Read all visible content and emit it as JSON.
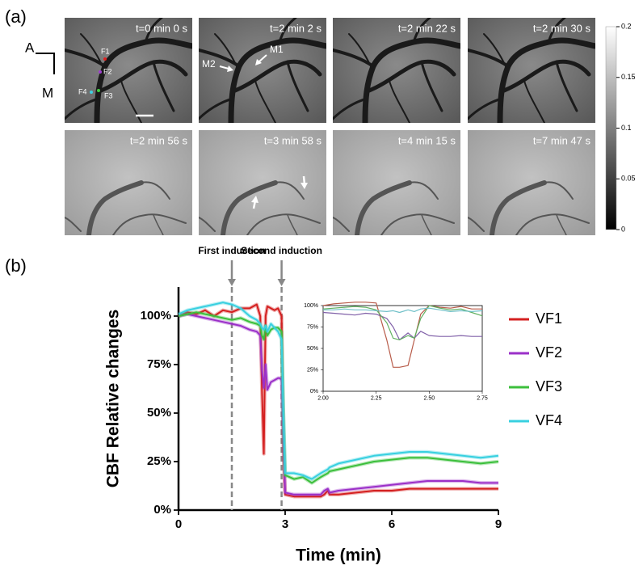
{
  "panel_labels": [
    "(a)",
    "(b)"
  ],
  "panel_a": {
    "frames": [
      "t=0 min 0 s",
      "t=2 min 2 s",
      "t=2 min 22 s",
      "t=2 min 30 s",
      "t=2 min 56 s",
      "t=3 min 58 s",
      "t=4 min 15 s",
      "t=7 min 47 s"
    ],
    "markers": [
      "F1",
      "F2",
      "F3",
      "F4"
    ],
    "arrows": [
      "M1",
      "M2"
    ],
    "orientation": [
      "A",
      "M"
    ],
    "colorbar": {
      "range": [
        0,
        0.2
      ],
      "ticks": [
        0,
        0.05,
        0.1,
        0.15,
        0.2
      ]
    }
  },
  "chart_data": [
    {
      "type": "line",
      "xlabel": "Time (min)",
      "ylabel": "CBF Relative changes",
      "xlim": [
        0,
        9
      ],
      "xticks": [
        0,
        3,
        6,
        9
      ],
      "ylim": [
        0,
        115
      ],
      "yticks": [
        {
          "value": 0,
          "label": "0%"
        },
        {
          "value": 25,
          "label": "25%"
        },
        {
          "value": 50,
          "label": "50%"
        },
        {
          "value": 75,
          "label": "75%"
        },
        {
          "value": 100,
          "label": "100%"
        }
      ],
      "legend": "right",
      "events": [
        {
          "x": 1.5,
          "label": "First induction"
        },
        {
          "x": 2.9,
          "label": "Second induction"
        }
      ],
      "x": [
        0,
        0.25,
        0.5,
        0.75,
        1,
        1.25,
        1.5,
        1.75,
        2,
        2.2,
        2.3,
        2.35,
        2.4,
        2.45,
        2.5,
        2.6,
        2.7,
        2.8,
        2.85,
        2.9,
        2.95,
        3,
        3.25,
        3.5,
        3.75,
        4,
        4.1,
        4.2,
        4.25,
        4.5,
        5,
        5.5,
        6,
        6.5,
        7,
        7.5,
        8,
        8.5,
        9
      ],
      "series": [
        {
          "name": "VF1",
          "color": "#d42020",
          "values": [
            100,
            102,
            101,
            103,
            100,
            103,
            102,
            104,
            104,
            106,
            100,
            60,
            29,
            100,
            105,
            104,
            103,
            104,
            102,
            100,
            30,
            8,
            7,
            7,
            7,
            7,
            8,
            10,
            8,
            8,
            9,
            10,
            10,
            11,
            11,
            11,
            11,
            11,
            11
          ]
        },
        {
          "name": "VF2",
          "color": "#9b30c8",
          "values": [
            100,
            101,
            100,
            99,
            98,
            97,
            96,
            95,
            93,
            92,
            90,
            72,
            63,
            75,
            62,
            66,
            67,
            68,
            68,
            67,
            40,
            9,
            8,
            8,
            8,
            8,
            10,
            11,
            9,
            10,
            11,
            12,
            13,
            14,
            15,
            15,
            15,
            14,
            14
          ]
        },
        {
          "name": "VF3",
          "color": "#3cbf3c",
          "values": [
            100,
            101,
            102,
            101,
            100,
            99,
            98,
            99,
            97,
            96,
            95,
            90,
            88,
            95,
            90,
            93,
            94,
            94,
            93,
            92,
            50,
            18,
            16,
            17,
            14,
            17,
            18,
            19,
            20,
            21,
            23,
            25,
            26,
            27,
            27,
            26,
            25,
            24,
            25
          ]
        },
        {
          "name": "VF4",
          "color": "#38d0e0",
          "values": [
            101,
            103,
            104,
            105,
            106,
            107,
            106,
            104,
            100,
            98,
            96,
            94,
            93,
            95,
            92,
            96,
            94,
            92,
            90,
            88,
            50,
            19,
            19,
            18,
            16,
            19,
            20,
            21,
            22,
            24,
            26,
            28,
            29,
            30,
            30,
            29,
            28,
            27,
            28
          ]
        }
      ]
    },
    {
      "type": "line",
      "xlim": [
        2,
        2.75
      ],
      "xticks": [
        {
          "value": 2,
          "label": "2.00"
        },
        {
          "value": 2.25,
          "label": "2.25"
        },
        {
          "value": 2.5,
          "label": "2.50"
        },
        {
          "value": 2.75,
          "label": "2.75"
        }
      ],
      "ylim": [
        0,
        100
      ],
      "yticks": [
        {
          "value": 0,
          "label": "0%"
        },
        {
          "value": 25,
          "label": "25%"
        },
        {
          "value": 50,
          "label": "50%"
        },
        {
          "value": 75,
          "label": "75%"
        },
        {
          "value": 100,
          "label": "100%"
        }
      ],
      "x": [
        2,
        2.05,
        2.1,
        2.15,
        2.2,
        2.25,
        2.3,
        2.33,
        2.36,
        2.4,
        2.43,
        2.46,
        2.5,
        2.55,
        2.6,
        2.65,
        2.7,
        2.75
      ],
      "series": [
        {
          "color": "#b85c4a",
          "values": [
            100,
            102,
            103,
            104,
            104,
            103,
            60,
            28,
            28,
            30,
            60,
            90,
            100,
            98,
            97,
            99,
            96,
            96
          ]
        },
        {
          "color": "#8060a8",
          "values": [
            92,
            91,
            90,
            89,
            91,
            90,
            85,
            75,
            60,
            68,
            62,
            70,
            65,
            64,
            64,
            65,
            64,
            64
          ]
        },
        {
          "color": "#60b060",
          "values": [
            96,
            97,
            98,
            99,
            98,
            95,
            80,
            62,
            60,
            65,
            62,
            85,
            100,
            97,
            95,
            96,
            92,
            88
          ]
        },
        {
          "color": "#70c0c8",
          "values": [
            95,
            95,
            96,
            95,
            95,
            94,
            93,
            94,
            92,
            95,
            93,
            96,
            97,
            95,
            93,
            94,
            93,
            94
          ]
        }
      ]
    }
  ]
}
